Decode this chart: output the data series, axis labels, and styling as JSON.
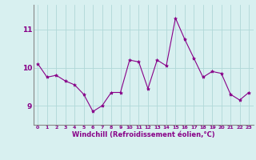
{
  "x": [
    0,
    1,
    2,
    3,
    4,
    5,
    6,
    7,
    8,
    9,
    10,
    11,
    12,
    13,
    14,
    15,
    16,
    17,
    18,
    19,
    20,
    21,
    22,
    23
  ],
  "y": [
    10.1,
    9.75,
    9.8,
    9.65,
    9.55,
    9.3,
    8.85,
    9.0,
    9.35,
    9.35,
    10.2,
    10.15,
    9.45,
    10.2,
    10.05,
    11.3,
    10.75,
    10.25,
    9.75,
    9.9,
    9.85,
    9.3,
    9.15,
    9.35
  ],
  "line_color": "#880088",
  "marker": "*",
  "marker_size": 3,
  "bg_color": "#d8f0f0",
  "grid_color": "#b0d8d8",
  "xlabel": "Windchill (Refroidissement éolien,°C)",
  "xlabel_color": "#880088",
  "tick_color": "#880088",
  "yticks": [
    9,
    10,
    11
  ],
  "xticks": [
    0,
    1,
    2,
    3,
    4,
    5,
    6,
    7,
    8,
    9,
    10,
    11,
    12,
    13,
    14,
    15,
    16,
    17,
    18,
    19,
    20,
    21,
    22,
    23
  ],
  "ylim": [
    8.5,
    11.65
  ],
  "xlim": [
    -0.5,
    23.5
  ]
}
